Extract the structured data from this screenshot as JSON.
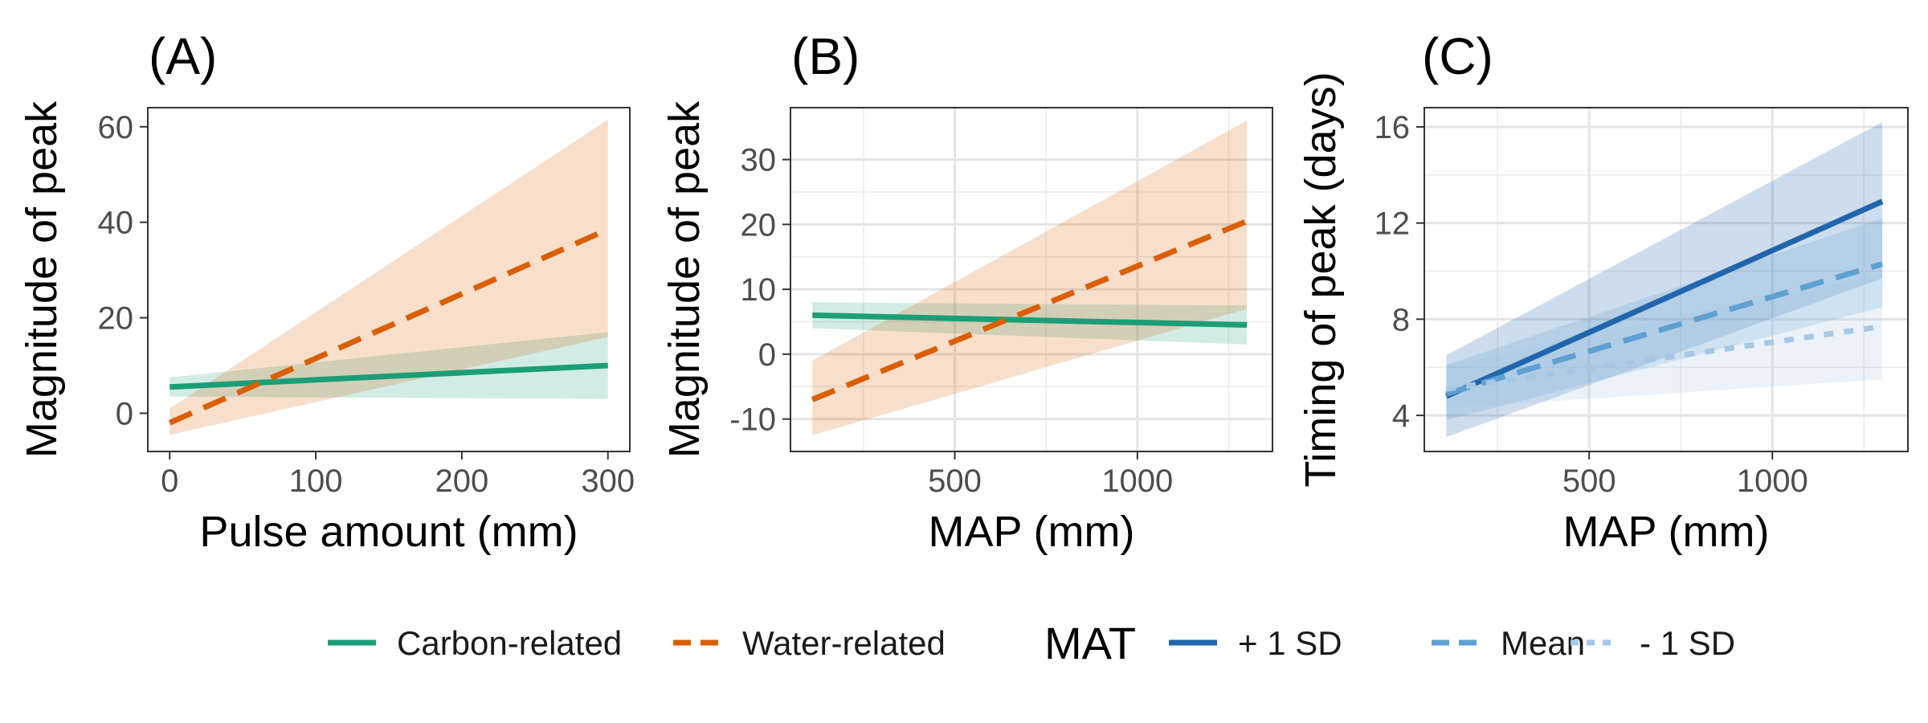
{
  "colors": {
    "carbon": "#1b9e77",
    "water": "#d95f02",
    "mat_plus": "#2166ac",
    "mat_mean": "#5fa0d2",
    "mat_minus": "#a6c8e4"
  },
  "chart_data": [
    {
      "type": "line",
      "panel_tag": "(A)",
      "xlabel": "Pulse amount (mm)",
      "ylabel": "Magnitude of peak",
      "xlim": [
        -15,
        315
      ],
      "ylim": [
        -8,
        64
      ],
      "xticks": [
        0,
        100,
        200,
        300
      ],
      "yticks": [
        0,
        20,
        40,
        60
      ],
      "grid": false,
      "series": [
        {
          "name": "Carbon-related",
          "color_key": "carbon",
          "dash": "solid",
          "x": [
            0,
            300
          ],
          "y": [
            5.5,
            10
          ],
          "lower": [
            3.5,
            3
          ],
          "upper": [
            7.5,
            17
          ]
        },
        {
          "name": "Water-related",
          "color_key": "water",
          "dash": "dashed",
          "x": [
            0,
            300
          ],
          "y": [
            -2,
            38.5
          ],
          "lower": [
            -4.5,
            16
          ],
          "upper": [
            1,
            61.5
          ]
        }
      ]
    },
    {
      "type": "line",
      "panel_tag": "(B)",
      "xlabel": "MAP (mm)",
      "ylabel": "Magnitude of peak",
      "xlim": [
        50,
        1370
      ],
      "ylim": [
        -15,
        38
      ],
      "xticks": [
        500,
        1000
      ],
      "xticks_minor": [
        250,
        750,
        1250
      ],
      "yticks": [
        -10,
        0,
        10,
        20,
        30
      ],
      "grid": true,
      "series": [
        {
          "name": "Carbon-related",
          "color_key": "carbon",
          "dash": "solid",
          "x": [
            110,
            1300
          ],
          "y": [
            6,
            4.5
          ],
          "lower": [
            4,
            1.5
          ],
          "upper": [
            8,
            7.5
          ]
        },
        {
          "name": "Water-related",
          "color_key": "water",
          "dash": "dashed",
          "x": [
            110,
            1300
          ],
          "y": [
            -7,
            20.5
          ],
          "lower": [
            -12.5,
            7
          ],
          "upper": [
            -1,
            36
          ]
        }
      ]
    },
    {
      "type": "line",
      "panel_tag": "(C)",
      "xlabel": "MAP (mm)",
      "ylabel": "Timing of peak (days)",
      "xlim": [
        50,
        1370
      ],
      "ylim": [
        2.5,
        16.8
      ],
      "xticks": [
        500,
        1000
      ],
      "xticks_minor": [
        250,
        750,
        1250
      ],
      "yticks": [
        4,
        8,
        12,
        16
      ],
      "grid": true,
      "series": [
        {
          "name": "+ 1 SD",
          "color_key": "mat_plus",
          "dash": "solid",
          "x": [
            110,
            1300
          ],
          "y": [
            4.8,
            12.9
          ],
          "lower": [
            3.1,
            9.7
          ],
          "upper": [
            6.5,
            16.2
          ]
        },
        {
          "name": "Mean",
          "color_key": "mat_mean",
          "dash": "dashed",
          "x": [
            110,
            1300
          ],
          "y": [
            4.9,
            10.3
          ],
          "lower": [
            3.8,
            8.5
          ],
          "upper": [
            6.1,
            12.2
          ]
        },
        {
          "name": "- 1 SD",
          "color_key": "mat_minus",
          "dash": "dotted",
          "x": [
            110,
            1300
          ],
          "y": [
            5.1,
            7.7
          ],
          "lower": [
            4.3,
            5.5
          ],
          "upper": [
            6.1,
            9.9
          ]
        }
      ]
    }
  ],
  "legend": {
    "position": "bottom",
    "group1": [
      {
        "label": "Carbon-related",
        "color_key": "carbon",
        "dash": "solid"
      },
      {
        "label": "Water-related",
        "color_key": "water",
        "dash": "dashed"
      }
    ],
    "group2_title": "MAT",
    "group2": [
      {
        "label": "+ 1 SD",
        "color_key": "mat_plus",
        "dash": "solid"
      },
      {
        "label": "Mean",
        "color_key": "mat_mean",
        "dash": "dashed"
      },
      {
        "label": "- 1 SD",
        "color_key": "mat_minus",
        "dash": "dotted"
      }
    ]
  }
}
